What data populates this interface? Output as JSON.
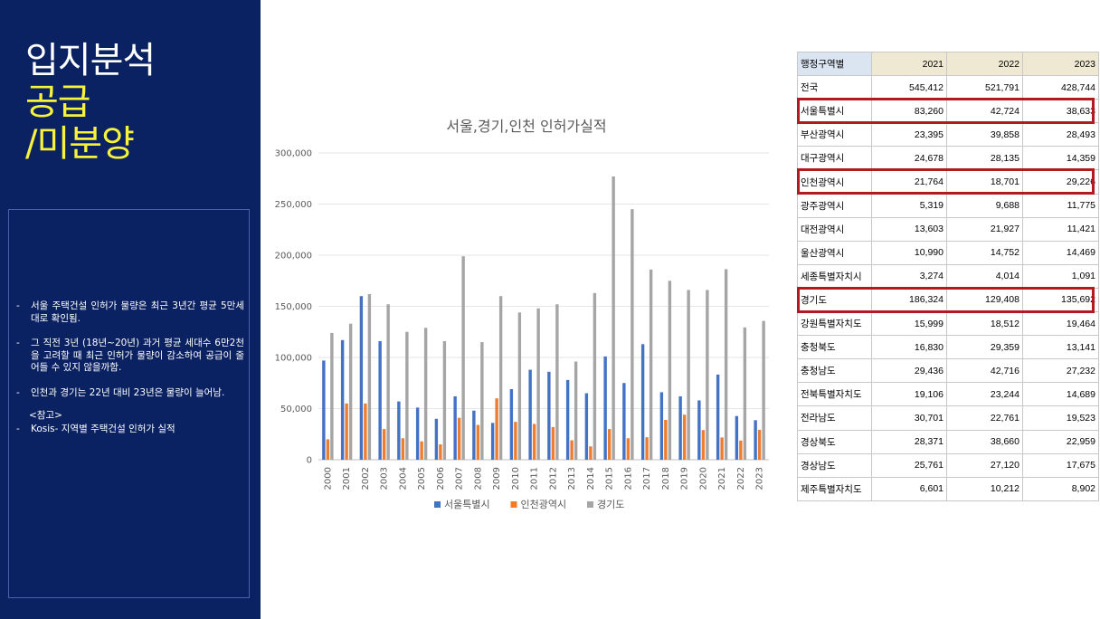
{
  "slide": {
    "title_line1": "입지분석",
    "title_line2": "공급",
    "title_line3": "/미분양",
    "accent_color": "#f7f23a",
    "background_color": "#0b2262"
  },
  "notes": [
    {
      "dash": "-",
      "text": "서울 주택건설 인허가 물량은 최근 3년간 평균 5만세대로 확인됨."
    },
    {
      "dash": "-",
      "text": "그 직전 3년 (18년~20년) 과거 평균 세대수 6만2천을 고려할 때 최근 인허가 물량이 감소하여 공급이 줄어들 수 있지 않을까함."
    },
    {
      "dash": "-",
      "text": "인천과 경기는 22년 대비 23년은 물량이 늘어남."
    }
  ],
  "reference": {
    "heading": "<참고>",
    "dash": "-",
    "text": "Kosis- 지역별 주택건설 인허가 실적"
  },
  "chart_data": {
    "type": "bar",
    "title": "서울,경기,인천 인허가실적",
    "xlabel": "",
    "ylabel": "",
    "ylim": [
      0,
      300000
    ],
    "yticks": [
      "0",
      "50,000",
      "100,000",
      "150,000",
      "200,000",
      "250,000",
      "300,000"
    ],
    "legend_position": "bottom",
    "grid": true,
    "categories": [
      "2000",
      "2001",
      "2002",
      "2003",
      "2004",
      "2005",
      "2006",
      "2007",
      "2008",
      "2009",
      "2010",
      "2011",
      "2012",
      "2013",
      "2014",
      "2015",
      "2016",
      "2017",
      "2018",
      "2019",
      "2020",
      "2021",
      "2022",
      "2023"
    ],
    "series": [
      {
        "name": "서울특별시",
        "color": "#4472c4",
        "values": [
          97000,
          117000,
          160000,
          116000,
          57000,
          51000,
          40000,
          62000,
          48000,
          36000,
          69000,
          88000,
          86000,
          78000,
          65000,
          101000,
          75000,
          113000,
          66000,
          62000,
          58000,
          83260,
          42724,
          38633
        ]
      },
      {
        "name": "인천광역시",
        "color": "#ed7d31",
        "values": [
          20000,
          55000,
          55000,
          30000,
          21000,
          18000,
          15000,
          41000,
          34000,
          60000,
          37000,
          35000,
          32000,
          19000,
          13000,
          30000,
          21000,
          22000,
          39000,
          44000,
          29000,
          21764,
          18701,
          29226
        ]
      },
      {
        "name": "경기도",
        "color": "#a5a5a5",
        "values": [
          124000,
          133000,
          162000,
          152000,
          125000,
          129000,
          116000,
          199000,
          115000,
          160000,
          144000,
          148000,
          152000,
          96000,
          163000,
          277000,
          245000,
          186000,
          175000,
          166000,
          166000,
          186324,
          129408,
          135692
        ]
      }
    ]
  },
  "table": {
    "headers": [
      "행정구역별",
      "2021",
      "2022",
      "2023"
    ],
    "rows": [
      [
        "전국",
        "545,412",
        "521,791",
        "428,744"
      ],
      [
        "서울특별시",
        "83,260",
        "42,724",
        "38,633"
      ],
      [
        "부산광역시",
        "23,395",
        "39,858",
        "28,493"
      ],
      [
        "대구광역시",
        "24,678",
        "28,135",
        "14,359"
      ],
      [
        "인천광역시",
        "21,764",
        "18,701",
        "29,226"
      ],
      [
        "광주광역시",
        "5,319",
        "9,688",
        "11,775"
      ],
      [
        "대전광역시",
        "13,603",
        "21,927",
        "11,421"
      ],
      [
        "울산광역시",
        "10,990",
        "14,752",
        "14,469"
      ],
      [
        "세종특별자치시",
        "3,274",
        "4,014",
        "1,091"
      ],
      [
        "경기도",
        "186,324",
        "129,408",
        "135,692"
      ],
      [
        "강원특별자치도",
        "15,999",
        "18,512",
        "19,464"
      ],
      [
        "충청북도",
        "16,830",
        "29,359",
        "13,141"
      ],
      [
        "충청남도",
        "29,436",
        "42,716",
        "27,232"
      ],
      [
        "전북특별자치도",
        "19,106",
        "23,244",
        "14,689"
      ],
      [
        "전라남도",
        "30,701",
        "22,761",
        "19,523"
      ],
      [
        "경상북도",
        "28,371",
        "38,660",
        "22,959"
      ],
      [
        "경상남도",
        "25,761",
        "27,120",
        "17,675"
      ],
      [
        "제주특별자치도",
        "6,601",
        "10,212",
        "8,902"
      ]
    ],
    "highlighted_rows": [
      1,
      4,
      9
    ],
    "highlight_color": "#b01a20"
  }
}
